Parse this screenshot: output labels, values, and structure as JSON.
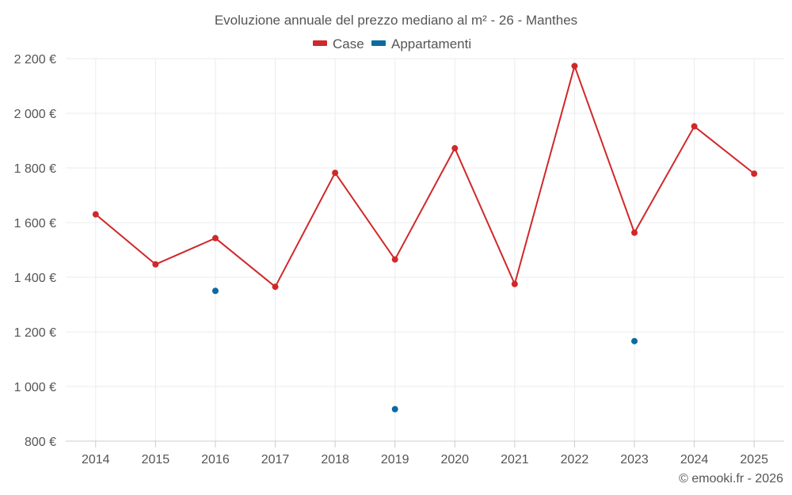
{
  "chart_data": {
    "type": "line",
    "title": "Evoluzione annuale del prezzo mediano al m² - 26 - Manthes",
    "categories": [
      "2014",
      "2015",
      "2016",
      "2017",
      "2018",
      "2019",
      "2020",
      "2021",
      "2022",
      "2023",
      "2024",
      "2025"
    ],
    "series": [
      {
        "name": "Case",
        "color": "#d0282a",
        "values": [
          1630,
          1447,
          1543,
          1365,
          1782,
          1465,
          1872,
          1375,
          2173,
          1563,
          1952,
          1779
        ]
      },
      {
        "name": "Appartamenti",
        "color": "#0a6aa1",
        "values": [
          null,
          null,
          1350,
          null,
          null,
          917,
          null,
          null,
          null,
          1166,
          null,
          null
        ]
      }
    ],
    "y_ticks": [
      800,
      1000,
      1200,
      1400,
      1600,
      1800,
      2000,
      2200
    ],
    "y_tick_labels": [
      "800 €",
      "1 000 €",
      "1 200 €",
      "1 400 €",
      "1 600 €",
      "1 800 €",
      "2 000 €",
      "2 200 €"
    ],
    "ylim": [
      800,
      2200
    ],
    "xlabel": "",
    "ylabel": "",
    "grid": true,
    "legend_position": "top-center",
    "credit": "© emooki.fr - 2026"
  }
}
